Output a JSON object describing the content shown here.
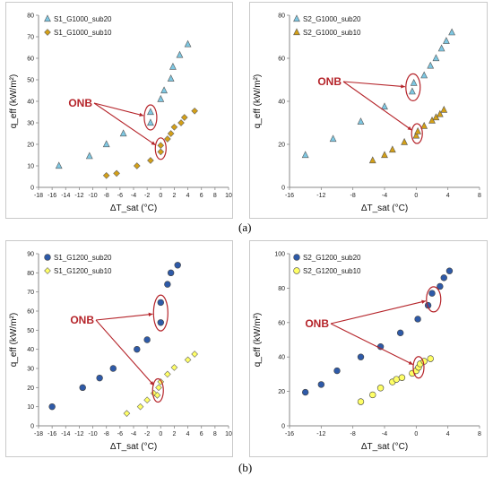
{
  "captions": {
    "a": "(a)",
    "b": "(b)"
  },
  "chart_data": [
    {
      "type": "scatter",
      "xlabel": "ΔT_sat (°C)",
      "ylabel": "q_eff (kW/m²)",
      "xlim": [
        -18,
        10
      ],
      "ylim": [
        0,
        80
      ],
      "xticks": [
        "-18",
        "-16",
        "-14",
        "-12",
        "-10",
        "-8",
        "-6",
        "-4",
        "-2",
        "0",
        "2",
        "4",
        "6",
        "8",
        "10"
      ],
      "yticks": [
        "0",
        "10",
        "20",
        "30",
        "40",
        "50",
        "60",
        "70",
        "80"
      ],
      "legend": "top-left",
      "annotation": "ONB",
      "series": [
        {
          "name": "S1_G1000_sub20",
          "marker": "triangle",
          "color": "#7ec8e3",
          "points": [
            [
              -15,
              10
            ],
            [
              -10.5,
              14.5
            ],
            [
              -8,
              20
            ],
            [
              -5.5,
              25
            ],
            [
              -1.5,
              30
            ],
            [
              -1.5,
              35
            ],
            [
              0,
              41
            ],
            [
              0.5,
              45
            ],
            [
              1.5,
              50.5
            ],
            [
              1.8,
              56
            ],
            [
              2.8,
              61.5
            ],
            [
              4,
              66.5
            ]
          ]
        },
        {
          "name": "S1_G1000_sub10",
          "marker": "diamond",
          "color": "#d4a017",
          "points": [
            [
              -8,
              5.5
            ],
            [
              -6.5,
              6.5
            ],
            [
              -3.5,
              10
            ],
            [
              -1.5,
              12.5
            ],
            [
              0,
              16.5
            ],
            [
              0,
              19.5
            ],
            [
              1,
              22.5
            ],
            [
              1.5,
              25
            ],
            [
              2,
              28
            ],
            [
              3,
              30
            ],
            [
              3.5,
              32.5
            ],
            [
              5,
              35.5
            ]
          ]
        }
      ]
    },
    {
      "type": "scatter",
      "xlabel": "ΔT_sat (°C)",
      "ylabel": "q_eff (kW/m²)",
      "xlim": [
        -16,
        8
      ],
      "ylim": [
        0,
        80
      ],
      "xticks": [
        "-16",
        "-12",
        "-8",
        "-4",
        "0",
        "4",
        "8"
      ],
      "yticks": [
        "0",
        "20",
        "40",
        "60",
        "80"
      ],
      "legend": "top-left",
      "annotation": "ONB",
      "series": [
        {
          "name": "S2_G1000_sub20",
          "marker": "triangle",
          "color": "#7ec8e3",
          "points": [
            [
              -14,
              15
            ],
            [
              -10.5,
              22.5
            ],
            [
              -7,
              30.5
            ],
            [
              -4,
              37.5
            ],
            [
              -0.5,
              44.5
            ],
            [
              -0.3,
              48.5
            ],
            [
              1,
              52
            ],
            [
              1.8,
              56.5
            ],
            [
              2.5,
              60
            ],
            [
              3.2,
              64.5
            ],
            [
              3.8,
              68
            ],
            [
              4.5,
              72
            ]
          ]
        },
        {
          "name": "S2_G1000_sub10",
          "marker": "triangle",
          "color": "#d4a017",
          "points": [
            [
              -5.5,
              12.5
            ],
            [
              -4,
              15
            ],
            [
              -3,
              17.5
            ],
            [
              -1.5,
              21
            ],
            [
              0,
              24
            ],
            [
              0.2,
              26
            ],
            [
              1,
              28.5
            ],
            [
              2,
              31
            ],
            [
              2.5,
              32.5
            ],
            [
              3,
              34
            ],
            [
              3.5,
              36
            ]
          ]
        }
      ]
    },
    {
      "type": "scatter",
      "xlabel": "ΔT_sat (°C)",
      "ylabel": "q_eff (kW/m²)",
      "xlim": [
        -18,
        10
      ],
      "ylim": [
        0,
        90
      ],
      "xticks": [
        "-18",
        "-16",
        "-14",
        "-12",
        "-10",
        "-8",
        "-6",
        "-4",
        "-2",
        "0",
        "2",
        "4",
        "6",
        "8",
        "10"
      ],
      "yticks": [
        "0",
        "10",
        "20",
        "30",
        "40",
        "50",
        "60",
        "70",
        "80",
        "90"
      ],
      "legend": "top-left",
      "annotation": "ONB",
      "series": [
        {
          "name": "S1_G1200_sub20",
          "marker": "circle",
          "color": "#2e5aa8",
          "points": [
            [
              -16,
              10
            ],
            [
              -11.5,
              20
            ],
            [
              -9,
              25
            ],
            [
              -7,
              30
            ],
            [
              -3.5,
              40
            ],
            [
              -2,
              45
            ],
            [
              0,
              54
            ],
            [
              0,
              64.5
            ],
            [
              1,
              74
            ],
            [
              1.5,
              80
            ],
            [
              2.5,
              84
            ]
          ]
        },
        {
          "name": "S1_G1200_sub10",
          "marker": "diamond",
          "color": "#ffff66",
          "points": [
            [
              -5,
              6.5
            ],
            [
              -3,
              10
            ],
            [
              -2,
              13.5
            ],
            [
              -1,
              17
            ],
            [
              -0.5,
              16
            ],
            [
              -0.3,
              20
            ],
            [
              0,
              23
            ],
            [
              1,
              27
            ],
            [
              2,
              30.5
            ],
            [
              4,
              34.5
            ],
            [
              5,
              37.5
            ]
          ]
        }
      ]
    },
    {
      "type": "scatter",
      "xlabel": "ΔT_sat (°C)",
      "ylabel": "q_eff (kW/m²)",
      "xlim": [
        -16,
        8
      ],
      "ylim": [
        0,
        100
      ],
      "xticks": [
        "-16",
        "-12",
        "-8",
        "-4",
        "0",
        "4",
        "8"
      ],
      "yticks": [
        "0",
        "20",
        "40",
        "60",
        "80",
        "100"
      ],
      "legend": "top-left",
      "annotation": "ONB",
      "series": [
        {
          "name": "S2_G1200_sub20",
          "marker": "circle",
          "color": "#2e5aa8",
          "points": [
            [
              -14,
              19.5
            ],
            [
              -12,
              24
            ],
            [
              -10,
              32
            ],
            [
              -7,
              40
            ],
            [
              -4.5,
              46
            ],
            [
              -2,
              54
            ],
            [
              0.2,
              62
            ],
            [
              1.5,
              70
            ],
            [
              2,
              77
            ],
            [
              3,
              81
            ],
            [
              3.5,
              86
            ],
            [
              4.2,
              90
            ]
          ]
        },
        {
          "name": "S2_G1200_sub10",
          "marker": "circle",
          "color": "#ffff66",
          "points": [
            [
              -7,
              14
            ],
            [
              -5.5,
              18
            ],
            [
              -4.5,
              22
            ],
            [
              -3,
              25.5
            ],
            [
              -2.5,
              27
            ],
            [
              -1.8,
              28
            ],
            [
              -0.5,
              30.5
            ],
            [
              0,
              32
            ],
            [
              0.3,
              34
            ],
            [
              0.5,
              36
            ],
            [
              1,
              37.5
            ],
            [
              1.8,
              39
            ]
          ]
        }
      ]
    }
  ]
}
